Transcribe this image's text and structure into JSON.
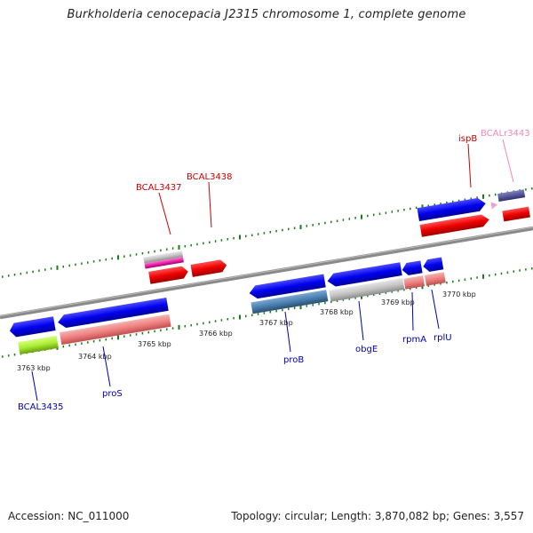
{
  "title": "Burkholderia cenocepacia J2315 chromosome 1, complete genome",
  "footer": {
    "accession": "Accession: NC_011000",
    "summary": "Topology: circular; Length: 3,870,082 bp; Genes: 3,557"
  },
  "colors": {
    "backbone": "#8a8a8a",
    "tick": "#1a7a1a",
    "forward_gene": "#0000ee",
    "forward_cds": "#ee0000",
    "reverse_gene": "#0000ee",
    "reverse_cds": "#ee8080",
    "trna": "#ee22aa",
    "label_forward": "#cc0000",
    "label_reverse": "#0000aa",
    "label_rna": "#ee88bb"
  },
  "scale_ticks": [
    {
      "label": "3763 kbp"
    },
    {
      "label": "3764 kbp"
    },
    {
      "label": "3765 kbp"
    },
    {
      "label": "3766 kbp"
    },
    {
      "label": "3767 kbp"
    },
    {
      "label": "3768 kbp"
    },
    {
      "label": "3769 kbp"
    },
    {
      "label": "3770 kbp"
    }
  ],
  "gene_labels_forward": [
    {
      "name": "BCAL3437"
    },
    {
      "name": "BCAL3438"
    },
    {
      "name": "ispB"
    },
    {
      "name": "BCALr3443"
    }
  ],
  "gene_labels_reverse": [
    {
      "name": "BCAL3435"
    },
    {
      "name": "proS"
    },
    {
      "name": "proB"
    },
    {
      "name": "obgE"
    },
    {
      "name": "rpmA"
    },
    {
      "name": "rplU"
    }
  ]
}
